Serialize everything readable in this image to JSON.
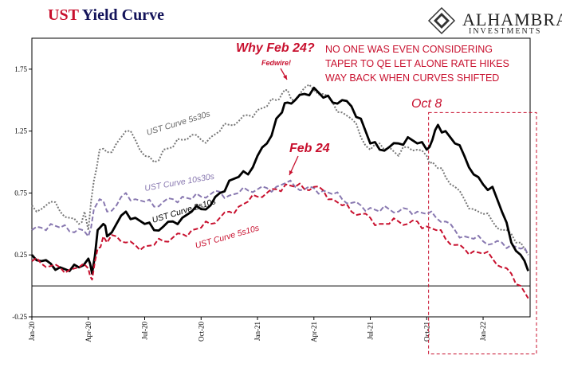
{
  "header": {
    "title_part1": "UST",
    "title_part2": " Yield Curve",
    "logo_name": "ALHAMBRA",
    "logo_sub": "INVESTMENTS"
  },
  "annotations": {
    "why_feb24": "Why Feb 24?",
    "fedwire": "Fedwire!",
    "no_one_line1": "NO ONE WAS EVEN CONSIDERING",
    "no_one_line2": "TAPER TO QE LET ALONE RATE HIKES",
    "no_one_line3": "WAY BACK WHEN CURVES SHIFTED",
    "feb24": "Feb 24",
    "oct8": "Oct 8"
  },
  "colors": {
    "red": "#c8102e",
    "navy": "#14145a",
    "purple": "#8878b0",
    "gray": "#777777",
    "black": "#000000"
  },
  "chart_data": {
    "type": "line",
    "title": "UST Yield Curve",
    "ylim": [
      -0.25,
      2.0
    ],
    "yticks": [
      -0.25,
      0.25,
      0.75,
      1.25,
      1.75
    ],
    "ytick_labels": [
      "-0.25",
      "0.25",
      "0.75",
      "1.25",
      "1.75"
    ],
    "xticks": [
      "Jan-20",
      "Apr-20",
      "Jul-20",
      "Oct-20",
      "Jan-21",
      "Apr-21",
      "Jul-21",
      "Oct-21",
      "Jan-22"
    ],
    "x_range_months": [
      0,
      26.5
    ],
    "series": [
      {
        "name": "UST Curve 5s30s",
        "style": "dotted",
        "color": "#777777",
        "x": [
          0,
          0.5,
          1,
          1.5,
          2,
          2.5,
          2.8,
          3,
          3.3,
          3.6,
          4,
          4.5,
          5,
          5.5,
          6,
          6.5,
          7,
          7.5,
          8,
          8.5,
          9,
          9.5,
          10,
          10.5,
          11,
          11.5,
          12,
          12.5,
          13,
          13.3,
          13.6,
          14,
          14.5,
          15,
          15.5,
          16,
          16.5,
          17,
          17.5,
          18,
          18.5,
          19,
          19.5,
          20,
          20.5,
          21,
          21.3,
          21.6,
          22,
          22.5,
          23,
          23.5,
          24,
          24.5,
          25,
          25.5,
          26,
          26.4
        ],
        "values": [
          0.65,
          0.62,
          0.68,
          0.6,
          0.55,
          0.5,
          0.6,
          0.45,
          0.85,
          1.1,
          1.08,
          1.15,
          1.25,
          1.18,
          1.05,
          1.0,
          1.1,
          1.12,
          1.18,
          1.22,
          1.18,
          1.2,
          1.25,
          1.3,
          1.33,
          1.38,
          1.42,
          1.45,
          1.5,
          1.55,
          1.58,
          1.5,
          1.6,
          1.58,
          1.55,
          1.48,
          1.4,
          1.35,
          1.2,
          1.1,
          1.15,
          1.12,
          1.05,
          1.12,
          1.1,
          1.05,
          1.0,
          0.95,
          0.88,
          0.8,
          0.7,
          0.62,
          0.58,
          0.52,
          0.45,
          0.42,
          0.35,
          0.25
        ]
      },
      {
        "name": "UST Curve 10s30s",
        "style": "dashed",
        "color": "#8878b0",
        "x": [
          0,
          0.5,
          1,
          1.5,
          2,
          2.5,
          3,
          3.3,
          3.6,
          4,
          4.5,
          5,
          5.5,
          6,
          6.5,
          7,
          7.5,
          8,
          8.5,
          9,
          9.5,
          10,
          10.5,
          11,
          11.5,
          12,
          12.5,
          13,
          13.5,
          14,
          14.5,
          15,
          15.5,
          16,
          16.5,
          17,
          17.5,
          18,
          18.5,
          19,
          19.5,
          20,
          20.5,
          21,
          21.5,
          22,
          22.5,
          23,
          23.5,
          24,
          24.5,
          25,
          25.5,
          26,
          26.4
        ],
        "values": [
          0.45,
          0.47,
          0.5,
          0.47,
          0.44,
          0.46,
          0.4,
          0.62,
          0.7,
          0.6,
          0.65,
          0.75,
          0.7,
          0.68,
          0.64,
          0.68,
          0.7,
          0.72,
          0.7,
          0.72,
          0.74,
          0.76,
          0.73,
          0.75,
          0.77,
          0.78,
          0.79,
          0.8,
          0.83,
          0.8,
          0.78,
          0.79,
          0.77,
          0.74,
          0.7,
          0.67,
          0.65,
          0.63,
          0.6,
          0.62,
          0.6,
          0.62,
          0.6,
          0.58,
          0.55,
          0.52,
          0.45,
          0.4,
          0.38,
          0.36,
          0.34,
          0.35,
          0.33,
          0.3,
          0.25
        ]
      },
      {
        "name": "UST Curve 2s10s",
        "style": "solid",
        "color": "#000000",
        "x": [
          0,
          0.5,
          1,
          1.5,
          2,
          2.5,
          3,
          3.2,
          3.5,
          3.8,
          4,
          4.5,
          5,
          5.5,
          6,
          6.5,
          7,
          7.5,
          8,
          8.5,
          9,
          9.5,
          10,
          10.5,
          11,
          11.5,
          12,
          12.5,
          13,
          13.3,
          13.6,
          14,
          14.5,
          15,
          15.5,
          16,
          16.5,
          17,
          17.5,
          18,
          18.5,
          19,
          19.5,
          20,
          20.5,
          21,
          21.3,
          21.6,
          22,
          22.5,
          23,
          23.5,
          24,
          24.5,
          25,
          25.5,
          26,
          26.4
        ],
        "values": [
          0.25,
          0.2,
          0.18,
          0.15,
          0.12,
          0.15,
          0.22,
          0.1,
          0.45,
          0.5,
          0.4,
          0.5,
          0.6,
          0.55,
          0.5,
          0.45,
          0.48,
          0.52,
          0.55,
          0.6,
          0.62,
          0.65,
          0.75,
          0.85,
          0.88,
          0.9,
          1.05,
          1.15,
          1.35,
          1.4,
          1.48,
          1.5,
          1.55,
          1.6,
          1.52,
          1.48,
          1.5,
          1.45,
          1.35,
          1.15,
          1.1,
          1.12,
          1.15,
          1.2,
          1.15,
          1.1,
          1.18,
          1.3,
          1.25,
          1.15,
          1.05,
          0.9,
          0.82,
          0.8,
          0.6,
          0.35,
          0.25,
          0.12
        ]
      },
      {
        "name": "UST Curve 5s10s",
        "style": "dashed",
        "color": "#c8102e",
        "x": [
          0,
          0.5,
          1,
          1.5,
          2,
          2.5,
          3,
          3.2,
          3.5,
          3.8,
          4,
          4.5,
          5,
          5.5,
          6,
          6.5,
          7,
          7.5,
          8,
          8.5,
          9,
          9.5,
          10,
          10.5,
          11,
          11.5,
          12,
          12.5,
          13,
          13.5,
          14,
          14.5,
          15,
          15.5,
          16,
          16.5,
          17,
          17.5,
          18,
          18.5,
          19,
          19.5,
          20,
          20.5,
          21,
          21.5,
          22,
          22.5,
          23,
          23.5,
          24,
          24.5,
          25,
          25.5,
          26,
          26.4
        ],
        "values": [
          0.2,
          0.18,
          0.16,
          0.15,
          0.13,
          0.15,
          0.14,
          0.05,
          0.3,
          0.4,
          0.35,
          0.4,
          0.35,
          0.33,
          0.32,
          0.33,
          0.36,
          0.39,
          0.42,
          0.45,
          0.47,
          0.5,
          0.55,
          0.6,
          0.64,
          0.68,
          0.72,
          0.75,
          0.78,
          0.82,
          0.8,
          0.78,
          0.8,
          0.77,
          0.7,
          0.65,
          0.6,
          0.58,
          0.55,
          0.5,
          0.5,
          0.52,
          0.5,
          0.52,
          0.48,
          0.45,
          0.38,
          0.33,
          0.3,
          0.28,
          0.26,
          0.22,
          0.15,
          0.1,
          0.0,
          -0.1
        ]
      }
    ],
    "baseline": 0,
    "highlight_box": {
      "x_start": 21.1,
      "x_end": 26.5,
      "y_top": 1.4,
      "y_bottom": -0.55
    },
    "series_labels": [
      "UST Curve 5s30s",
      "UST Curve 10s30s",
      "UST Curve 2s10s",
      "UST Curve 5s10s"
    ]
  }
}
